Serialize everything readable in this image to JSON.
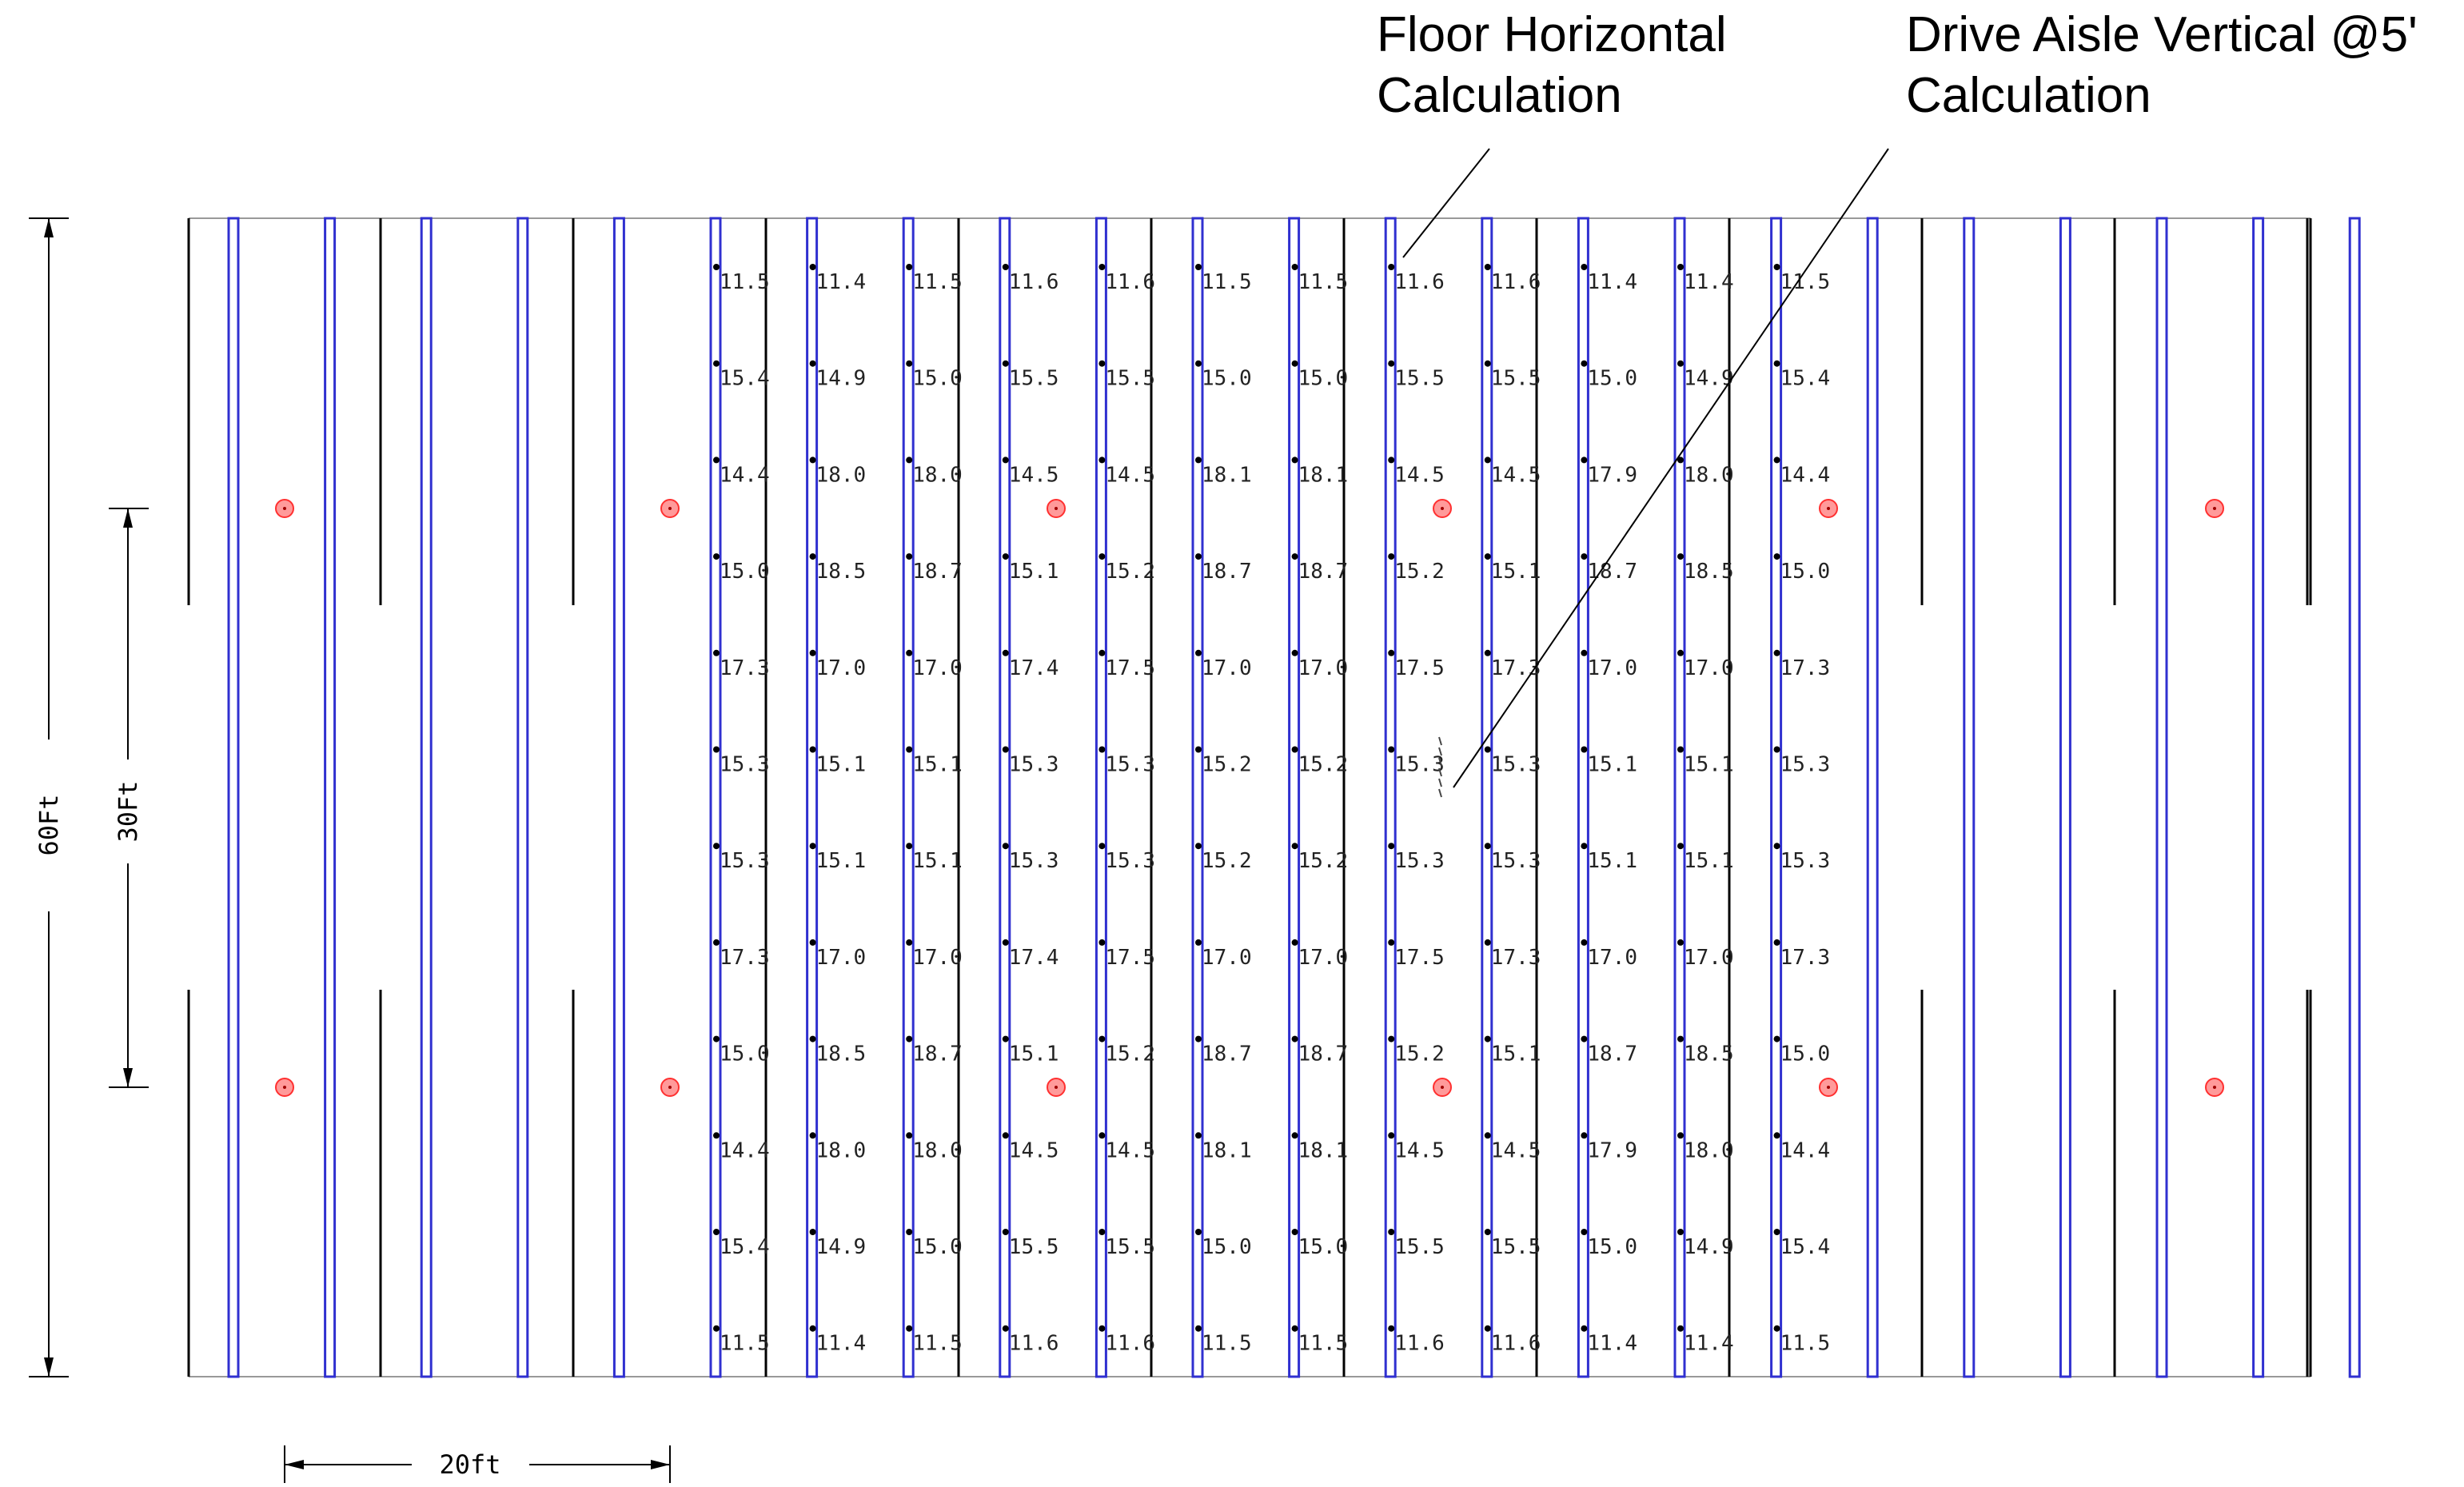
{
  "annotations": {
    "floor_label": "Floor Horizontal\nCalculation",
    "aisle_label": "Drive Aisle Vertical @5'\nCalculation"
  },
  "dimensions": {
    "overall_height": "60Ft",
    "spacing_height": "30Ft",
    "spacing_width": "20ft"
  },
  "colors": {
    "fixture": "#3030d0",
    "rack": "#000000",
    "pole": "#ff3030",
    "boundary": "#999999"
  },
  "grid_values": [
    [
      "11.5",
      "11.4",
      "11.5",
      "11.6",
      "11.6",
      "11.5",
      "11.5",
      "11.6",
      "11.6",
      "11.4",
      "11.4",
      "11.5"
    ],
    [
      "15.4",
      "14.9",
      "15.0",
      "15.5",
      "15.5",
      "15.0",
      "15.0",
      "15.5",
      "15.5",
      "15.0",
      "14.9",
      "15.4"
    ],
    [
      "14.4",
      "18.0",
      "18.0",
      "14.5",
      "14.5",
      "18.1",
      "18.1",
      "14.5",
      "14.5",
      "17.9",
      "18.0",
      "14.4"
    ],
    [
      "15.0",
      "18.5",
      "18.7",
      "15.1",
      "15.2",
      "18.7",
      "18.7",
      "15.2",
      "15.1",
      "18.7",
      "18.5",
      "15.0"
    ],
    [
      "17.3",
      "17.0",
      "17.0",
      "17.4",
      "17.5",
      "17.0",
      "17.0",
      "17.5",
      "17.3",
      "17.0",
      "17.0",
      "17.3"
    ],
    [
      "15.3",
      "15.1",
      "15.1",
      "15.3",
      "15.3",
      "15.2",
      "15.2",
      "15.3",
      "15.3",
      "15.1",
      "15.1",
      "15.3"
    ],
    [
      "15.3",
      "15.1",
      "15.1",
      "15.3",
      "15.3",
      "15.2",
      "15.2",
      "15.3",
      "15.3",
      "15.1",
      "15.1",
      "15.3"
    ],
    [
      "17.3",
      "17.0",
      "17.0",
      "17.4",
      "17.5",
      "17.0",
      "17.0",
      "17.5",
      "17.3",
      "17.0",
      "17.0",
      "17.3"
    ],
    [
      "15.0",
      "18.5",
      "18.7",
      "15.1",
      "15.2",
      "18.7",
      "18.7",
      "15.2",
      "15.1",
      "18.7",
      "18.5",
      "15.0"
    ],
    [
      "14.4",
      "18.0",
      "18.0",
      "14.5",
      "14.5",
      "18.1",
      "18.1",
      "14.5",
      "14.5",
      "17.9",
      "18.0",
      "14.4"
    ],
    [
      "15.4",
      "14.9",
      "15.0",
      "15.5",
      "15.5",
      "15.0",
      "15.0",
      "15.5",
      "15.5",
      "15.0",
      "14.9",
      "15.4"
    ],
    [
      "11.5",
      "11.4",
      "11.5",
      "11.6",
      "11.6",
      "11.5",
      "11.5",
      "11.6",
      "11.6",
      "11.4",
      "11.4",
      "11.5"
    ]
  ]
}
